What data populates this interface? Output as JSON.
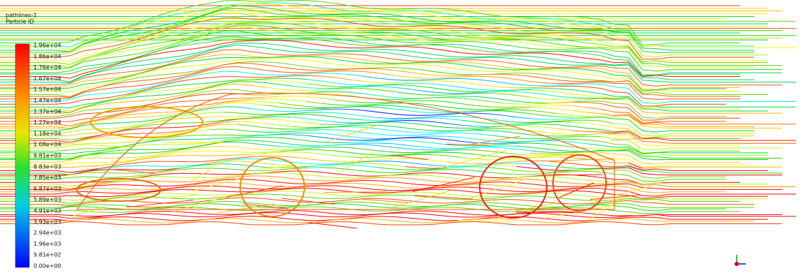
{
  "header": {
    "title": "pathlines-1",
    "subtitle": "Particle ID"
  },
  "colorbar": {
    "labels": [
      "1.96e+04",
      "1.86e+04",
      "1.76e+04",
      "1.67e+04",
      "1.57e+04",
      "1.47e+04",
      "1.37e+04",
      "1.27e+04",
      "1.18e+04",
      "1.08e+04",
      "9.81e+03",
      "8.83e+03",
      "7.85e+03",
      "6.87e+03",
      "5.89e+03",
      "4.91e+03",
      "3.93e+03",
      "2.94e+03",
      "1.96e+03",
      "9.81e+02",
      "0.00e+00"
    ]
  }
}
